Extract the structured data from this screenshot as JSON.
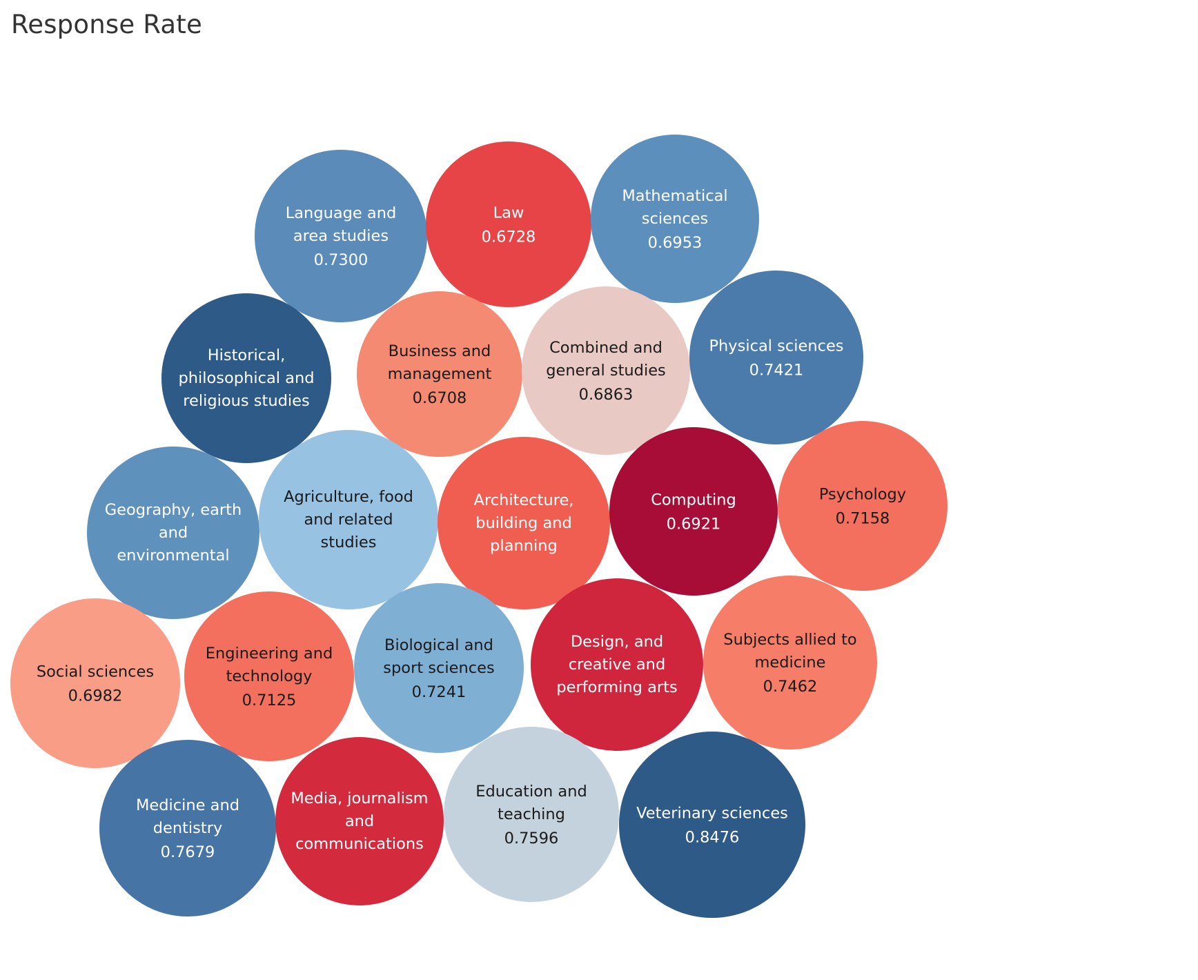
{
  "title": "Response Rate",
  "chart_data": {
    "type": "packed-bubble",
    "title": "Response Rate",
    "measure": "Response Rate",
    "bubbles": [
      {
        "name": "Language and area studies",
        "lines": [
          "Language and",
          "area studies"
        ],
        "value": 0.73,
        "label": "0.7300",
        "color": "#5b8bb8",
        "text_color": "#ffffff"
      },
      {
        "name": "Law",
        "lines": [
          "Law"
        ],
        "value": 0.6728,
        "label": "0.6728",
        "color": "#e64446",
        "text_color": "#ffffff"
      },
      {
        "name": "Mathematical sciences",
        "lines": [
          "Mathematical",
          "sciences"
        ],
        "value": 0.6953,
        "label": "0.6953",
        "color": "#5c8fbb",
        "text_color": "#ffffff"
      },
      {
        "name": "Historical, philosophical and religious studies",
        "lines": [
          "Historical,",
          "philosophical and",
          "religious studies"
        ],
        "value": null,
        "label": "",
        "color": "#2d5a87",
        "text_color": "#ffffff"
      },
      {
        "name": "Business and management",
        "lines": [
          "Business and",
          "management"
        ],
        "value": 0.6708,
        "label": "0.6708",
        "color": "#f58a72",
        "text_color": "#1a1a1a"
      },
      {
        "name": "Combined and general studies",
        "lines": [
          "Combined and",
          "general studies"
        ],
        "value": 0.6863,
        "label": "0.6863",
        "color": "#e9c9c4",
        "text_color": "#1a1a1a"
      },
      {
        "name": "Physical sciences",
        "lines": [
          "Physical sciences"
        ],
        "value": 0.7421,
        "label": "0.7421",
        "color": "#4a7bab",
        "text_color": "#ffffff"
      },
      {
        "name": "Geography, earth and environmental",
        "lines": [
          "Geography, earth",
          "and",
          "environmental"
        ],
        "value": null,
        "label": "",
        "color": "#5f91bd",
        "text_color": "#ffffff"
      },
      {
        "name": "Agriculture, food and related studies",
        "lines": [
          "Agriculture, food",
          "and related",
          "studies"
        ],
        "value": null,
        "label": "",
        "color": "#98c2e1",
        "text_color": "#1a1a1a"
      },
      {
        "name": "Architecture, building and planning",
        "lines": [
          "Architecture,",
          "building and",
          "planning"
        ],
        "value": null,
        "label": "",
        "color": "#ef5e51",
        "text_color": "#ffffff"
      },
      {
        "name": "Computing",
        "lines": [
          "Computing"
        ],
        "value": 0.6921,
        "label": "0.6921",
        "color": "#a80d37",
        "text_color": "#ffffff"
      },
      {
        "name": "Psychology",
        "lines": [
          "Psychology"
        ],
        "value": 0.7158,
        "label": "0.7158",
        "color": "#f36f5e",
        "text_color": "#1a1a1a"
      },
      {
        "name": "Social sciences",
        "lines": [
          "Social sciences"
        ],
        "value": 0.6982,
        "label": "0.6982",
        "color": "#fa9d86",
        "text_color": "#1a1a1a"
      },
      {
        "name": "Engineering and technology",
        "lines": [
          "Engineering and",
          "technology"
        ],
        "value": 0.7125,
        "label": "0.7125",
        "color": "#f36f5e",
        "text_color": "#1a1a1a"
      },
      {
        "name": "Biological and sport sciences",
        "lines": [
          "Biological and",
          "sport sciences"
        ],
        "value": 0.7241,
        "label": "0.7241",
        "color": "#80afd4",
        "text_color": "#1a1a1a"
      },
      {
        "name": "Design, and creative and performing arts",
        "lines": [
          "Design, and",
          "creative and",
          "performing arts"
        ],
        "value": null,
        "label": "",
        "color": "#d0263d",
        "text_color": "#ffffff"
      },
      {
        "name": "Subjects allied to medicine",
        "lines": [
          "Subjects allied to",
          "medicine"
        ],
        "value": 0.7462,
        "label": "0.7462",
        "color": "#f67d67",
        "text_color": "#1a1a1a"
      },
      {
        "name": "Medicine and dentistry",
        "lines": [
          "Medicine and",
          "dentistry"
        ],
        "value": 0.7679,
        "label": "0.7679",
        "color": "#4675a5",
        "text_color": "#ffffff"
      },
      {
        "name": "Media, journalism and communications",
        "lines": [
          "Media, journalism",
          "and",
          "communications"
        ],
        "value": null,
        "label": "",
        "color": "#d32a3e",
        "text_color": "#ffffff"
      },
      {
        "name": "Education and teaching",
        "lines": [
          "Education and",
          "teaching"
        ],
        "value": 0.7596,
        "label": "0.7596",
        "color": "#c4d2de",
        "text_color": "#1a1a1a"
      },
      {
        "name": "Veterinary sciences",
        "lines": [
          "Veterinary sciences"
        ],
        "value": 0.8476,
        "label": "0.8476",
        "color": "#2e5a87",
        "text_color": "#ffffff"
      }
    ]
  }
}
